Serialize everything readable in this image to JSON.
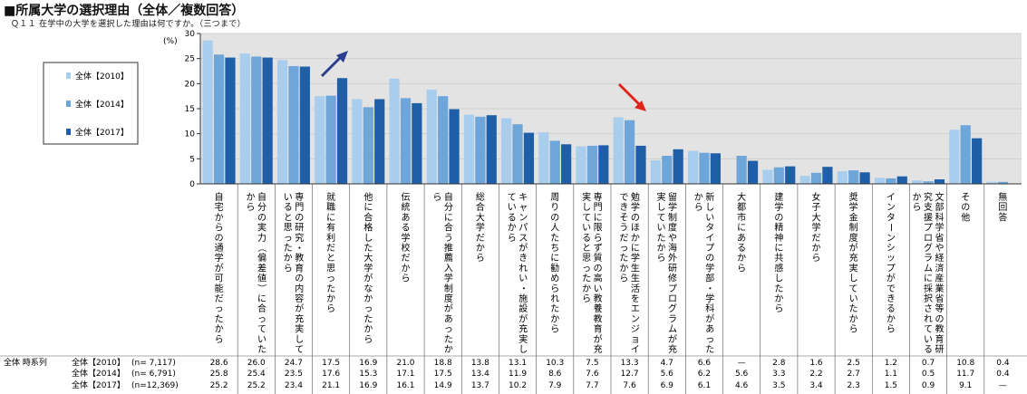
{
  "title": "■所属大学の選択理由（全体／複数回答）",
  "subtitle": "Ｑ１１ 在学中の大学を選択した理由は何ですか。（三つまで）",
  "chart_data": {
    "type": "bar",
    "unit_label": "(%)",
    "ylim": [
      0,
      30
    ],
    "yticks": [
      0,
      5,
      10,
      15,
      20,
      25,
      30
    ],
    "legend_position": "left",
    "colors": [
      "#a9cdec",
      "#6fa6da",
      "#1f5fa8"
    ],
    "categories": [
      "自宅からの通学が可能だったから",
      "自分の実力（偏差値）に合っていたから",
      "専門の研究・教育の内容が充実していると思ったから",
      "就職に有利だと思ったから",
      "他に合格した大学がなかったから",
      "伝統ある学校だから",
      "自分に合う推薦入学制度があったから",
      "総合大学だから",
      "キャンパスがきれい・施設が充実しているから",
      "周りの人たちに勧められたから",
      "専門に限らず質の高い教養教育が充実していると思ったから",
      "勉学のほかに学生生活をエンジョイできそうだったから",
      "留学制度や海外研修プログラムが充実していたから",
      "新しいタイプの学部・学科があったから",
      "大都市にあるから",
      "建学の精神に共感したから",
      "女子大学だから",
      "奨学金制度が充実していたから",
      "インターンシップができるから",
      "文部科学省や経済産業省等の教育研究支援プログラムに採択されているから",
      "その他",
      "無回答"
    ],
    "series": [
      {
        "name": "全体【2010】",
        "n": "(n= 7,117)",
        "values": [
          28.6,
          26.0,
          24.7,
          17.5,
          16.9,
          21.0,
          18.8,
          13.8,
          13.1,
          10.3,
          7.5,
          13.3,
          4.7,
          6.6,
          null,
          2.8,
          1.6,
          2.5,
          1.2,
          0.7,
          10.8,
          0.4
        ],
        "labels": [
          "28.6",
          "26.0",
          "24.7",
          "17.5",
          "16.9",
          "21.0",
          "18.8",
          "13.8",
          "13.1",
          "10.3",
          "7.5",
          "13.3",
          "4.7",
          "6.6",
          "—",
          "2.8",
          "1.6",
          "2.5",
          "1.2",
          "0.7",
          "10.8",
          "0.4"
        ]
      },
      {
        "name": "全体【2014】",
        "n": "(n= 6,791)",
        "values": [
          25.8,
          25.4,
          23.5,
          17.6,
          15.3,
          17.1,
          17.5,
          13.4,
          11.9,
          8.6,
          7.6,
          12.7,
          5.6,
          6.2,
          5.6,
          3.3,
          2.2,
          2.7,
          1.1,
          0.5,
          11.7,
          0.4
        ],
        "labels": [
          "25.8",
          "25.4",
          "23.5",
          "17.6",
          "15.3",
          "17.1",
          "17.5",
          "13.4",
          "11.9",
          "8.6",
          "7.6",
          "12.7",
          "5.6",
          "6.2",
          "5.6",
          "3.3",
          "2.2",
          "2.7",
          "1.1",
          "0.5",
          "11.7",
          "0.4"
        ]
      },
      {
        "name": "全体【2017】",
        "n": "(n=12,369)",
        "values": [
          25.2,
          25.2,
          23.4,
          21.1,
          16.9,
          16.1,
          14.9,
          13.7,
          10.2,
          7.9,
          7.7,
          7.6,
          6.9,
          6.1,
          4.6,
          3.5,
          3.4,
          2.3,
          1.5,
          0.9,
          9.1,
          null
        ],
        "labels": [
          "25.2",
          "25.2",
          "23.4",
          "21.1",
          "16.9",
          "16.1",
          "14.9",
          "13.7",
          "10.2",
          "7.9",
          "7.7",
          "7.6",
          "6.9",
          "6.1",
          "4.6",
          "3.5",
          "3.4",
          "2.3",
          "1.5",
          "0.9",
          "9.1",
          "—"
        ]
      }
    ],
    "table_header": "全体 時系列"
  }
}
